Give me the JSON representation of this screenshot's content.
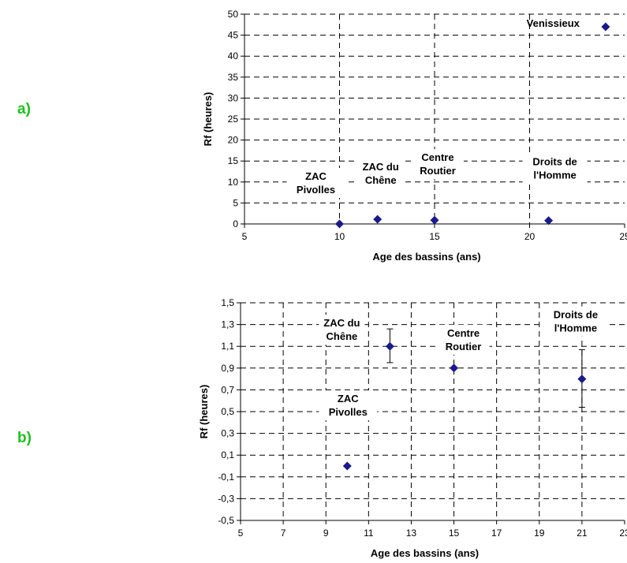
{
  "panel_labels": [
    "a)",
    "b)"
  ],
  "colors": {
    "marker": "#1a1a8c",
    "grid": "#000000",
    "panel_label": "#1ec01e"
  },
  "chart_data": [
    {
      "type": "scatter",
      "xlabel": "Age des bassins (ans)",
      "ylabel": "Rf (heures)",
      "xlim": [
        5,
        25
      ],
      "ylim": [
        0,
        50
      ],
      "xticks": [
        5,
        10,
        15,
        20,
        25
      ],
      "xtick_labels": [
        "5",
        "10",
        "15",
        "20",
        "25"
      ],
      "yticks": [
        0,
        5,
        10,
        15,
        20,
        25,
        30,
        35,
        40,
        45,
        50
      ],
      "ytick_labels": [
        "0",
        "5",
        "10",
        "15",
        "20",
        "25",
        "30",
        "35",
        "40",
        "45",
        "50"
      ],
      "grid": true,
      "points": [
        {
          "x": 10,
          "y": 0,
          "label": [
            "ZAC",
            "Pivolles"
          ]
        },
        {
          "x": 12,
          "y": 1.1,
          "label": [
            "ZAC du",
            "Chêne"
          ]
        },
        {
          "x": 15,
          "y": 0.9,
          "label": [
            "Centre",
            "Routier"
          ]
        },
        {
          "x": 21,
          "y": 0.8,
          "label": [
            "Droits de",
            "l'Homme"
          ]
        },
        {
          "x": 24,
          "y": 47,
          "label": [
            "Venissieux"
          ]
        }
      ]
    },
    {
      "type": "scatter",
      "xlabel": "Age des bassins (ans)",
      "ylabel": "Rf (heures)",
      "xlim": [
        5,
        23
      ],
      "ylim": [
        -0.5,
        1.5
      ],
      "xticks": [
        5,
        7,
        9,
        11,
        13,
        15,
        17,
        19,
        21,
        23
      ],
      "xtick_labels": [
        "5",
        "7",
        "9",
        "11",
        "13",
        "15",
        "17",
        "19",
        "21",
        "23"
      ],
      "yticks": [
        -0.5,
        -0.3,
        -0.1,
        0.1,
        0.3,
        0.5,
        0.7,
        0.9,
        1.1,
        1.3,
        1.5
      ],
      "ytick_labels": [
        "-0,5",
        "-0,3",
        "-0,1",
        "0,1",
        "0,3",
        "0,5",
        "0,7",
        "0,9",
        "1,1",
        "1,3",
        "1,5"
      ],
      "grid": true,
      "points": [
        {
          "x": 10,
          "y": 0,
          "label": [
            "ZAC",
            "Pivolles"
          ]
        },
        {
          "x": 12,
          "y": 1.1,
          "err_low": 0.95,
          "err_high": 1.26,
          "label": [
            "ZAC du",
            "Chêne"
          ]
        },
        {
          "x": 15,
          "y": 0.9,
          "label": [
            "Centre",
            "Routier"
          ]
        },
        {
          "x": 21,
          "y": 0.8,
          "err_low": 0.54,
          "err_high": 1.07,
          "label": [
            "Droits de",
            "l'Homme"
          ]
        }
      ]
    }
  ]
}
